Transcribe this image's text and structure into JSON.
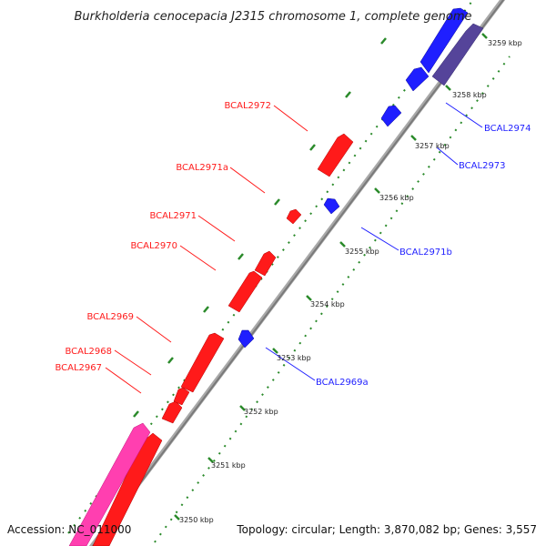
{
  "title": "Burkholderia cenocepacia J2315 chromosome 1, complete genome",
  "footer": {
    "accession": "Accession: NC_011000",
    "summary": "Topology: circular; Length: 3,870,082 bp; Genes: 3,557"
  },
  "colors": {
    "forward_strand": "#ff1a1a",
    "reverse_strand": "#1f1fff",
    "rna_or_pseudo": "#ff3fb0",
    "reverse_other": "#55449a",
    "backbone": "#8a8a8a",
    "ticks": "#2a8a2a"
  },
  "scale": {
    "kbp_labels": [
      "3250 kbp",
      "3251 kbp",
      "3252 kbp",
      "3253 kbp",
      "3254 kbp",
      "3255 kbp",
      "3256 kbp",
      "3257 kbp",
      "3258 kbp",
      "3259 kbp"
    ]
  },
  "genes": {
    "forward": [
      "BCAL2967",
      "BCAL2968",
      "BCAL2969",
      "BCAL2970",
      "BCAL2971",
      "BCAL2971a",
      "BCAL2972"
    ],
    "reverse": [
      "BCAL2969a",
      "BCAL2971b",
      "BCAL2973",
      "BCAL2974"
    ]
  }
}
